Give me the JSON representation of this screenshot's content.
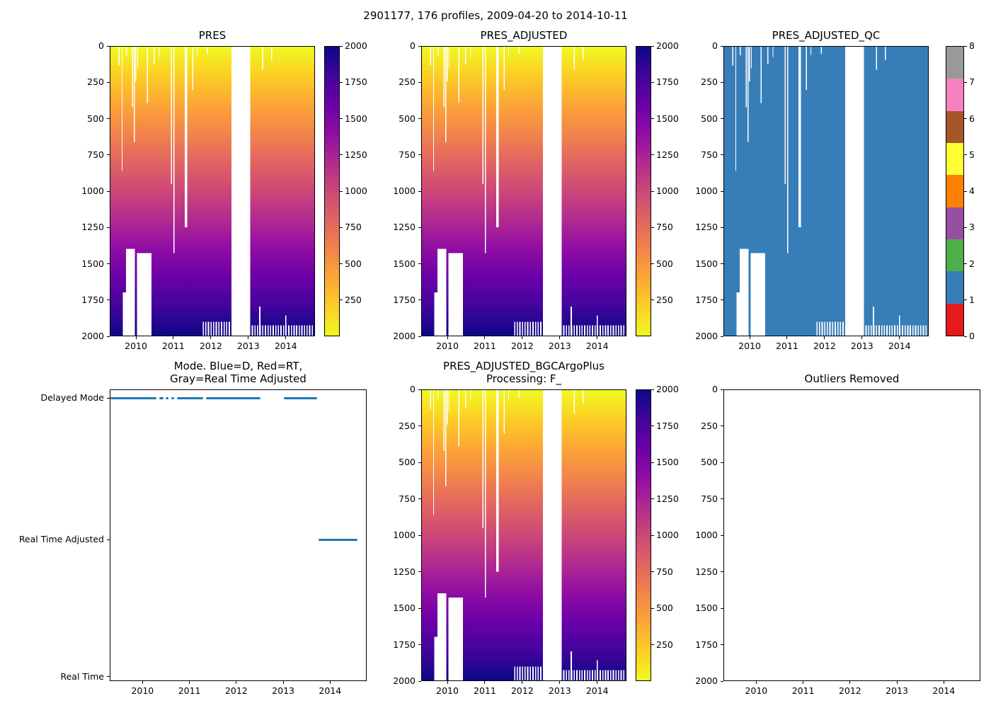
{
  "figure": {
    "suptitle": "2901177, 176 profiles, 2009-04-20 to 2014-10-11",
    "background": "#ffffff",
    "text_color": "#000000"
  },
  "palette": {
    "plasma_value_stops_low_to_high": [
      "#f0f921",
      "#fcce25",
      "#fca636",
      "#f2844b",
      "#e16462",
      "#cc4778",
      "#b12a90",
      "#8f0da4",
      "#6a00a8",
      "#41049d",
      "#0d0887"
    ],
    "qc_dominant_fill": "#377eb8",
    "mode_line_color": "#1f77b4",
    "missing_data_color": "#ffffff",
    "qc_colorbar_colors_bottom_to_top": [
      "#e41a1c",
      "#377eb8",
      "#4daf4a",
      "#984ea3",
      "#ff7f00",
      "#ffff33",
      "#a65628",
      "#f781bf",
      "#999999"
    ]
  },
  "chart_data": {
    "type": "heatmap",
    "description": "Argo float pressure profile time-series figure with 6 subplots",
    "x_range": [
      2009.3,
      2014.78
    ],
    "x_ticks": [
      2010,
      2011,
      2012,
      2013,
      2014
    ],
    "depth_range": [
      0,
      2000
    ],
    "depth_ticks": [
      0,
      250,
      500,
      750,
      1000,
      1250,
      1500,
      1750,
      2000
    ],
    "pressure_colorbar_ticks_top_to_bottom": [
      2000,
      1750,
      1500,
      1250,
      1000,
      750,
      500,
      250
    ],
    "qc_colorbar_ticks_top_to_bottom": [
      8,
      7,
      6,
      5,
      4,
      3,
      2,
      1,
      0
    ],
    "subplots": [
      {
        "id": "pres",
        "type": "heatmap",
        "title_lines": [
          "PRES"
        ],
        "colormap": "plasma reversed",
        "value_range": [
          0,
          2000
        ]
      },
      {
        "id": "pres_adjusted",
        "type": "heatmap",
        "title_lines": [
          "PRES_ADJUSTED"
        ],
        "colormap": "plasma reversed",
        "value_range": [
          0,
          2000
        ]
      },
      {
        "id": "pres_adjusted_qc",
        "type": "heatmap",
        "title_lines": [
          "PRES_ADJUSTED_QC"
        ],
        "colormap": "Set1 discrete 0-8",
        "dominant_value": 1
      },
      {
        "id": "mode",
        "type": "line",
        "title_lines": [
          "Mode. Blue=D, Red=RT,",
          "Gray=Real Time Adjusted"
        ],
        "y_categories": [
          "Delayed Mode",
          "Real Time Adjusted",
          "Real Time"
        ],
        "segments": [
          {
            "mode": "Delayed Mode",
            "start": 2009.32,
            "end": 2010.3
          },
          {
            "mode": "Delayed Mode",
            "start": 2010.36,
            "end": 2010.44
          },
          {
            "mode": "Delayed Mode",
            "start": 2010.5,
            "end": 2010.56
          },
          {
            "mode": "Delayed Mode",
            "start": 2010.62,
            "end": 2010.68
          },
          {
            "mode": "Delayed Mode",
            "start": 2010.74,
            "end": 2011.3
          },
          {
            "mode": "Delayed Mode",
            "start": 2011.36,
            "end": 2012.52
          },
          {
            "mode": "Delayed Mode",
            "start": 2013.02,
            "end": 2013.72
          },
          {
            "mode": "Real Time Adjusted",
            "start": 2013.76,
            "end": 2014.58
          }
        ]
      },
      {
        "id": "bgc",
        "type": "heatmap",
        "title_lines": [
          "PRES_ADJUSTED_BGCArgoPlus",
          "Processing: F_"
        ],
        "colormap": "plasma reversed",
        "value_range": [
          0,
          2000
        ]
      },
      {
        "id": "outliers",
        "type": "empty",
        "title_lines": [
          "Outliers Removed"
        ]
      }
    ],
    "missing_regions_year_depth": [
      [
        2009.52,
        2009.545,
        0,
        130
      ],
      [
        2009.6,
        2009.625,
        0,
        860
      ],
      [
        2009.72,
        2009.74,
        0,
        60
      ],
      [
        2009.88,
        2009.9,
        0,
        420
      ],
      [
        2009.93,
        2009.955,
        0,
        660
      ],
      [
        2009.97,
        2009.985,
        0,
        240
      ],
      [
        2010.02,
        2010.04,
        0,
        150
      ],
      [
        2010.28,
        2010.31,
        0,
        390
      ],
      [
        2010.46,
        2010.48,
        0,
        120
      ],
      [
        2010.6,
        2010.62,
        0,
        70
      ],
      [
        2010.93,
        2010.96,
        0,
        950
      ],
      [
        2010.99,
        2011.02,
        0,
        1430
      ],
      [
        2011.3,
        2011.36,
        0,
        1250
      ],
      [
        2011.5,
        2011.52,
        0,
        300
      ],
      [
        2011.62,
        2011.64,
        0,
        60
      ],
      [
        2011.9,
        2011.92,
        0,
        50
      ],
      [
        2012.55,
        2013.06,
        0,
        2000
      ],
      [
        2013.38,
        2013.41,
        0,
        160
      ],
      [
        2013.62,
        2013.64,
        0,
        90
      ],
      [
        2009.72,
        2009.96,
        1400,
        2000
      ],
      [
        2010.01,
        2010.4,
        1430,
        2000
      ],
      [
        2009.63,
        2009.72,
        1700,
        2000
      ],
      [
        2013.3,
        2013.33,
        1800,
        2000
      ],
      [
        2014.0,
        2014.03,
        1860,
        2000
      ]
    ],
    "bottom_combs": [
      {
        "x_start": 2011.78,
        "x_end": 2012.53,
        "depth_from": 1905,
        "period": 0.07,
        "width": 0.032
      },
      {
        "x_start": 2013.1,
        "x_end": 2014.72,
        "depth_from": 1930,
        "period": 0.07,
        "width": 0.032
      }
    ]
  }
}
